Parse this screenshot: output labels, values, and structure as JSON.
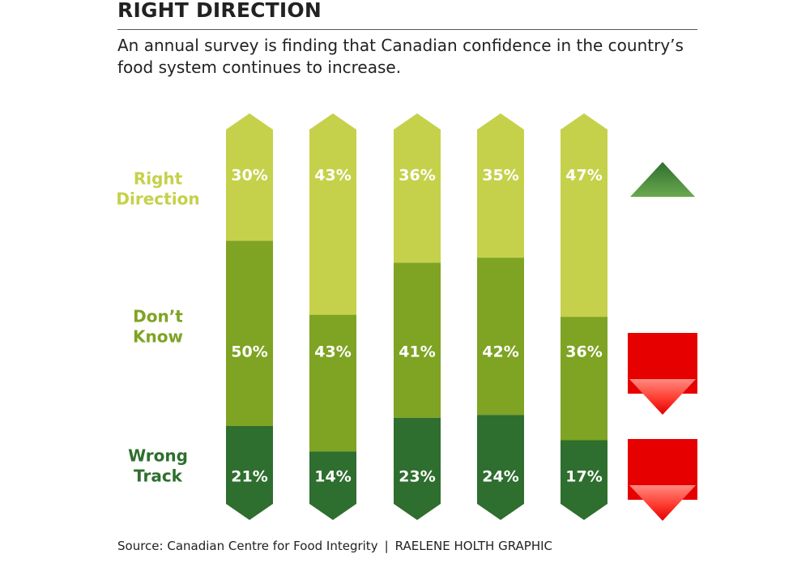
{
  "header": {
    "title": "RIGHT DIRECTION",
    "subtitle": "An annual survey is finding that Canadian confidence in the country’s food system continues to increase."
  },
  "chart_data": {
    "type": "bar",
    "stacked": true,
    "categories": [
      "",
      "",
      "",
      "",
      ""
    ],
    "series": [
      {
        "name": "Right Direction",
        "label_lines": [
          "Right",
          "Direction"
        ],
        "values": [
          30,
          43,
          36,
          35,
          47
        ],
        "color": "#c5d14a"
      },
      {
        "name": "Don’t Know",
        "label_lines": [
          "Don’t",
          "Know"
        ],
        "values": [
          50,
          43,
          41,
          42,
          36
        ],
        "color": "#7fa323"
      },
      {
        "name": "Wrong Track",
        "label_lines": [
          "Wrong",
          "Track"
        ],
        "values": [
          21,
          14,
          23,
          24,
          17
        ],
        "color": "#2e6e2e"
      }
    ],
    "value_suffix": "%",
    "trend_indicators": [
      {
        "series": "Right Direction",
        "direction": "up",
        "color": "#3d7f3a"
      },
      {
        "series": "Don’t Know",
        "direction": "down",
        "color": "#e60000"
      },
      {
        "series": "Wrong Track",
        "direction": "down",
        "color": "#e60000"
      }
    ]
  },
  "footer": {
    "source": "Source: Canadian Centre for Food Integrity",
    "credit": "RAELENE HOLTH GRAPHIC"
  }
}
